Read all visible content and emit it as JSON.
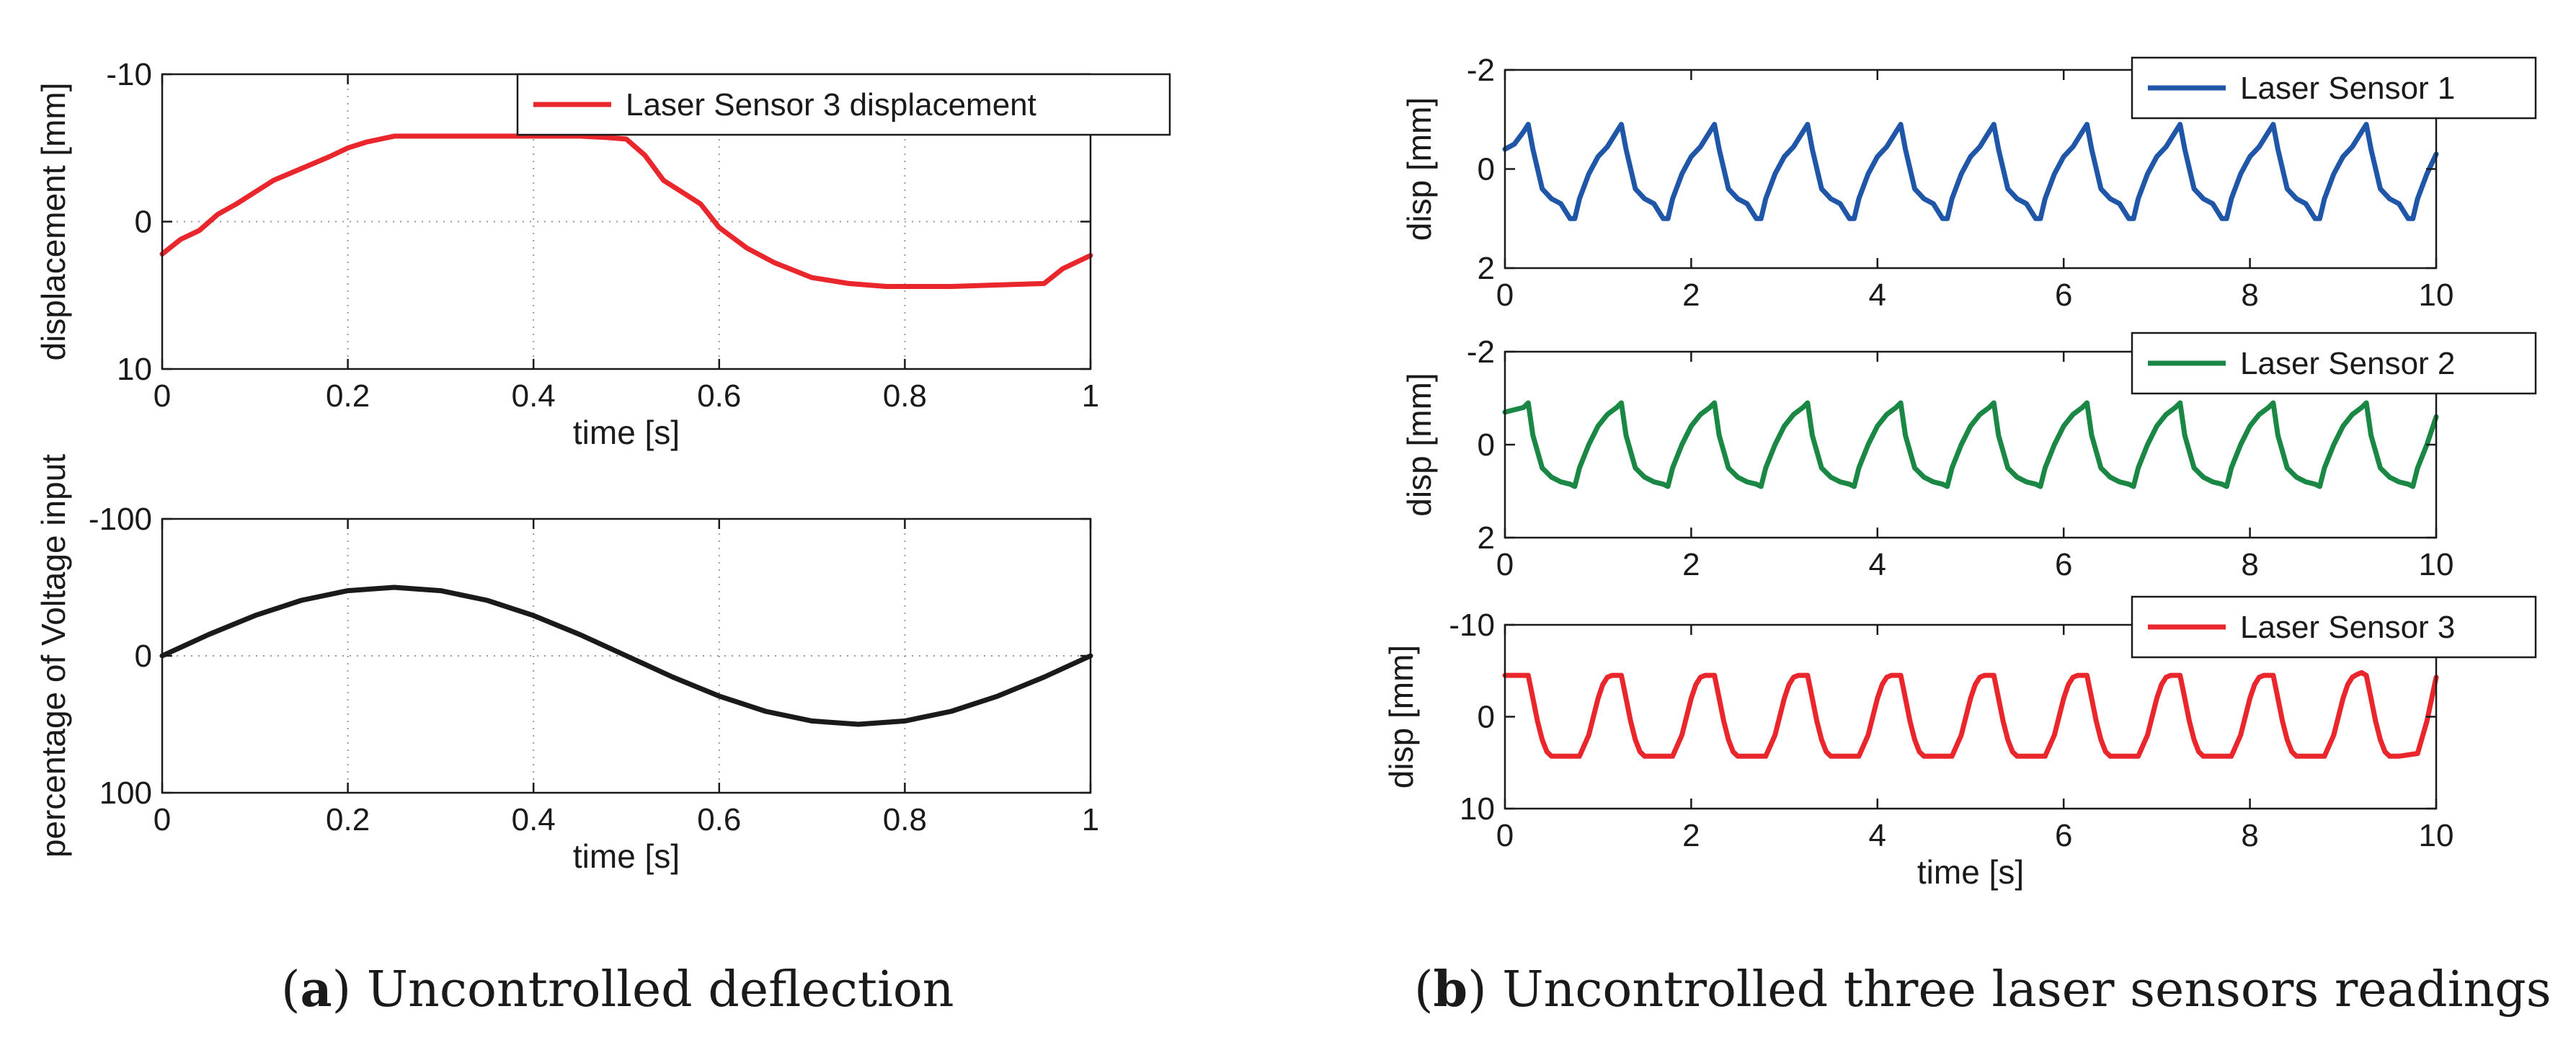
{
  "colors": {
    "red": "#e8262b",
    "blue": "#1f56a8",
    "green": "#1a8744",
    "black": "#1a1a1a"
  },
  "captions": {
    "a_letter": "a",
    "a_text": "Uncontrolled deflection",
    "b_letter": "b",
    "b_text": "Uncontrolled three laser sensors readings"
  },
  "chart_data": [
    {
      "id": "a_top",
      "type": "line",
      "xlabel": "time [s]",
      "ylabel": "displacement [mm]",
      "xlim": [
        0,
        1
      ],
      "ylim": [
        -10,
        10
      ],
      "y_reversed": true,
      "xticks": [
        0,
        0.2,
        0.4,
        0.6,
        0.8,
        1
      ],
      "xtick_labels": [
        "0",
        "0.2",
        "0.4",
        "0.6",
        "0.8",
        "1"
      ],
      "yticks": [
        -10,
        0,
        10
      ],
      "ytick_labels": [
        "-10",
        "0",
        "10"
      ],
      "grid": true,
      "legend_position": "top-right",
      "series": [
        {
          "name": "Laser Sensor 3 displacement",
          "color": "red",
          "x": [
            0,
            0.02,
            0.04,
            0.06,
            0.08,
            0.1,
            0.12,
            0.15,
            0.18,
            0.2,
            0.22,
            0.25,
            0.3,
            0.35,
            0.4,
            0.45,
            0.48,
            0.5,
            0.52,
            0.54,
            0.56,
            0.58,
            0.6,
            0.63,
            0.66,
            0.7,
            0.74,
            0.78,
            0.8,
            0.85,
            0.9,
            0.95,
            0.97,
            1.0
          ],
          "y": [
            2.2,
            1.2,
            0.6,
            -0.5,
            -1.2,
            -2.0,
            -2.8,
            -3.6,
            -4.4,
            -5.0,
            -5.4,
            -5.8,
            -5.8,
            -5.8,
            -5.8,
            -5.8,
            -5.7,
            -5.6,
            -4.5,
            -2.8,
            -2.0,
            -1.2,
            0.4,
            1.8,
            2.8,
            3.8,
            4.2,
            4.4,
            4.4,
            4.4,
            4.3,
            4.2,
            3.2,
            2.3
          ]
        }
      ]
    },
    {
      "id": "a_bottom",
      "type": "line",
      "xlabel": "time [s]",
      "ylabel": "percentage of Voltage input",
      "xlim": [
        0,
        1
      ],
      "ylim": [
        -100,
        100
      ],
      "y_reversed": true,
      "xticks": [
        0,
        0.2,
        0.4,
        0.6,
        0.8,
        1
      ],
      "xtick_labels": [
        "0",
        "0.2",
        "0.4",
        "0.6",
        "0.8",
        "1"
      ],
      "yticks": [
        -100,
        0,
        100
      ],
      "ytick_labels": [
        "-100",
        "0",
        "100"
      ],
      "grid": true,
      "series": [
        {
          "name": "voltage input",
          "color": "black",
          "x": [
            0,
            0.05,
            0.1,
            0.15,
            0.2,
            0.25,
            0.3,
            0.35,
            0.4,
            0.45,
            0.5,
            0.55,
            0.6,
            0.65,
            0.7,
            0.75,
            0.8,
            0.85,
            0.9,
            0.95,
            1.0
          ],
          "y": [
            0,
            -15.5,
            -29.4,
            -40.5,
            -47.6,
            -50,
            -47.6,
            -40.5,
            -29.4,
            -15.5,
            0,
            15.5,
            29.4,
            40.5,
            47.6,
            50,
            47.6,
            40.5,
            29.4,
            15.5,
            0
          ]
        }
      ]
    },
    {
      "id": "b_top",
      "type": "line",
      "xlabel": "",
      "ylabel": "disp [mm]",
      "xlim": [
        0,
        10
      ],
      "ylim": [
        -2,
        2
      ],
      "y_reversed": true,
      "xticks": [
        0,
        2,
        4,
        6,
        8,
        10
      ],
      "xtick_labels": [
        "0",
        "2",
        "4",
        "6",
        "8",
        "10"
      ],
      "yticks": [
        -2,
        0,
        2
      ],
      "ytick_labels": [
        "-2",
        "0",
        "2"
      ],
      "grid": false,
      "legend_position": "top-right",
      "series": [
        {
          "name": "Laser Sensor 1",
          "color": "blue",
          "x": [
            0,
            0.1,
            0.2,
            0.25,
            0.3,
            0.4,
            0.5,
            0.6,
            0.7,
            0.75,
            0.8,
            0.9,
            1.0,
            1.1,
            1.2,
            1.25,
            1.3,
            1.4,
            1.5,
            1.6,
            1.7,
            1.75,
            1.8,
            1.9,
            2.0,
            2.1,
            2.2,
            2.25,
            2.3,
            2.4,
            2.5,
            2.6,
            2.7,
            2.75,
            2.8,
            2.9,
            3.0,
            3.1,
            3.2,
            3.25,
            3.3,
            3.4,
            3.5,
            3.6,
            3.7,
            3.75,
            3.8,
            3.9,
            4.0,
            4.1,
            4.2,
            4.25,
            4.3,
            4.4,
            4.5,
            4.6,
            4.7,
            4.75,
            4.8,
            4.9,
            5.0,
            5.1,
            5.2,
            5.25,
            5.3,
            5.4,
            5.5,
            5.6,
            5.7,
            5.75,
            5.8,
            5.9,
            6.0,
            6.1,
            6.2,
            6.25,
            6.3,
            6.4,
            6.5,
            6.6,
            6.7,
            6.75,
            6.8,
            6.9,
            7.0,
            7.1,
            7.2,
            7.25,
            7.3,
            7.4,
            7.5,
            7.6,
            7.7,
            7.75,
            7.8,
            7.9,
            8.0,
            8.1,
            8.2,
            8.25,
            8.3,
            8.4,
            8.5,
            8.6,
            8.7,
            8.75,
            8.8,
            8.9,
            9.0,
            9.1,
            9.2,
            9.25,
            9.3,
            9.4,
            9.5,
            9.6,
            9.7,
            9.75,
            9.8,
            9.9,
            10.0
          ],
          "y": [
            -0.4,
            -0.5,
            -0.75,
            -0.9,
            -0.4,
            0.4,
            0.6,
            0.7,
            1.0,
            1.0,
            0.6,
            0.1,
            -0.25,
            -0.45,
            -0.75,
            -0.9,
            -0.4,
            0.4,
            0.6,
            0.7,
            1.0,
            1.0,
            0.6,
            0.1,
            -0.25,
            -0.45,
            -0.75,
            -0.9,
            -0.4,
            0.4,
            0.6,
            0.7,
            1.0,
            1.0,
            0.6,
            0.1,
            -0.25,
            -0.45,
            -0.75,
            -0.9,
            -0.4,
            0.4,
            0.6,
            0.7,
            1.0,
            1.0,
            0.6,
            0.1,
            -0.25,
            -0.45,
            -0.75,
            -0.9,
            -0.4,
            0.4,
            0.6,
            0.7,
            1.0,
            1.0,
            0.6,
            0.1,
            -0.25,
            -0.45,
            -0.75,
            -0.9,
            -0.4,
            0.4,
            0.6,
            0.7,
            1.0,
            1.0,
            0.6,
            0.1,
            -0.25,
            -0.45,
            -0.75,
            -0.9,
            -0.4,
            0.4,
            0.6,
            0.7,
            1.0,
            1.0,
            0.6,
            0.1,
            -0.25,
            -0.45,
            -0.75,
            -0.9,
            -0.4,
            0.4,
            0.6,
            0.7,
            1.0,
            1.0,
            0.6,
            0.1,
            -0.25,
            -0.45,
            -0.75,
            -0.9,
            -0.4,
            0.4,
            0.6,
            0.7,
            1.0,
            1.0,
            0.6,
            0.1,
            -0.25,
            -0.45,
            -0.75,
            -0.9,
            -0.4,
            0.4,
            0.6,
            0.7,
            1.0,
            1.0,
            0.6,
            0.1,
            -0.3
          ]
        }
      ]
    },
    {
      "id": "b_mid",
      "type": "line",
      "xlabel": "",
      "ylabel": "disp [mm]",
      "xlim": [
        0,
        10
      ],
      "ylim": [
        -2,
        2
      ],
      "y_reversed": true,
      "xticks": [
        0,
        2,
        4,
        6,
        8,
        10
      ],
      "xtick_labels": [
        "0",
        "2",
        "4",
        "6",
        "8",
        "10"
      ],
      "yticks": [
        -2,
        0,
        2
      ],
      "ytick_labels": [
        "-2",
        "0",
        "2"
      ],
      "grid": false,
      "legend_position": "top-right",
      "series": [
        {
          "name": "Laser Sensor 2",
          "color": "green",
          "x": [
            0,
            0.1,
            0.2,
            0.25,
            0.3,
            0.4,
            0.5,
            0.6,
            0.7,
            0.75,
            0.8,
            0.9,
            1.0,
            1.1,
            1.2,
            1.25,
            1.3,
            1.4,
            1.5,
            1.6,
            1.7,
            1.75,
            1.8,
            1.9,
            2.0,
            2.1,
            2.2,
            2.25,
            2.3,
            2.4,
            2.5,
            2.6,
            2.7,
            2.75,
            2.8,
            2.9,
            3.0,
            3.1,
            3.2,
            3.25,
            3.3,
            3.4,
            3.5,
            3.6,
            3.7,
            3.75,
            3.8,
            3.9,
            4.0,
            4.1,
            4.2,
            4.25,
            4.3,
            4.4,
            4.5,
            4.6,
            4.7,
            4.75,
            4.8,
            4.9,
            5.0,
            5.1,
            5.2,
            5.25,
            5.3,
            5.4,
            5.5,
            5.6,
            5.7,
            5.75,
            5.8,
            5.9,
            6.0,
            6.1,
            6.2,
            6.25,
            6.3,
            6.4,
            6.5,
            6.6,
            6.7,
            6.75,
            6.8,
            6.9,
            7.0,
            7.1,
            7.2,
            7.25,
            7.3,
            7.4,
            7.5,
            7.6,
            7.7,
            7.75,
            7.8,
            7.9,
            8.0,
            8.1,
            8.2,
            8.25,
            8.3,
            8.4,
            8.5,
            8.6,
            8.7,
            8.75,
            8.8,
            8.9,
            9.0,
            9.1,
            9.2,
            9.25,
            9.3,
            9.4,
            9.5,
            9.6,
            9.7,
            9.75,
            9.8,
            9.9,
            10.0
          ],
          "y": [
            -0.7,
            -0.75,
            -0.8,
            -0.9,
            -0.2,
            0.5,
            0.7,
            0.8,
            0.85,
            0.9,
            0.5,
            0.0,
            -0.4,
            -0.65,
            -0.8,
            -0.9,
            -0.2,
            0.5,
            0.7,
            0.8,
            0.85,
            0.9,
            0.5,
            0.0,
            -0.4,
            -0.65,
            -0.8,
            -0.9,
            -0.2,
            0.5,
            0.7,
            0.8,
            0.85,
            0.9,
            0.5,
            0.0,
            -0.4,
            -0.65,
            -0.8,
            -0.9,
            -0.2,
            0.5,
            0.7,
            0.8,
            0.85,
            0.9,
            0.5,
            0.0,
            -0.4,
            -0.65,
            -0.8,
            -0.9,
            -0.2,
            0.5,
            0.7,
            0.8,
            0.85,
            0.9,
            0.5,
            0.0,
            -0.4,
            -0.65,
            -0.8,
            -0.9,
            -0.2,
            0.5,
            0.7,
            0.8,
            0.85,
            0.9,
            0.5,
            0.0,
            -0.4,
            -0.65,
            -0.8,
            -0.9,
            -0.2,
            0.5,
            0.7,
            0.8,
            0.85,
            0.9,
            0.5,
            0.0,
            -0.4,
            -0.65,
            -0.8,
            -0.9,
            -0.2,
            0.5,
            0.7,
            0.8,
            0.85,
            0.9,
            0.5,
            0.0,
            -0.4,
            -0.65,
            -0.8,
            -0.9,
            -0.2,
            0.5,
            0.7,
            0.8,
            0.85,
            0.9,
            0.5,
            0.0,
            -0.4,
            -0.65,
            -0.8,
            -0.9,
            -0.2,
            0.5,
            0.7,
            0.8,
            0.85,
            0.9,
            0.5,
            0.0,
            -0.6
          ]
        }
      ]
    },
    {
      "id": "b_bottom",
      "type": "line",
      "xlabel": "time [s]",
      "ylabel": "disp [mm]",
      "xlim": [
        0,
        10
      ],
      "ylim": [
        -10,
        10
      ],
      "y_reversed": true,
      "xticks": [
        0,
        2,
        4,
        6,
        8,
        10
      ],
      "xtick_labels": [
        "0",
        "2",
        "4",
        "6",
        "8",
        "10"
      ],
      "yticks": [
        -10,
        0,
        10
      ],
      "ytick_labels": [
        "-10",
        "0",
        "10"
      ],
      "grid": false,
      "legend_position": "top-right",
      "series": [
        {
          "name": "Laser Sensor 3",
          "color": "red",
          "x": [
            0,
            0.25,
            0.3,
            0.35,
            0.4,
            0.45,
            0.5,
            0.55,
            0.6,
            0.8,
            0.9,
            1.0,
            1.05,
            1.1,
            1.15,
            1.2,
            1.25,
            1.3,
            1.35,
            1.4,
            1.45,
            1.5,
            1.55,
            1.6,
            1.8,
            1.9,
            2.0,
            2.05,
            2.1,
            2.15,
            2.2,
            2.25,
            2.3,
            2.35,
            2.4,
            2.45,
            2.5,
            2.55,
            2.6,
            2.8,
            2.9,
            3.0,
            3.05,
            3.1,
            3.15,
            3.2,
            3.25,
            3.3,
            3.35,
            3.4,
            3.45,
            3.5,
            3.55,
            3.6,
            3.8,
            3.9,
            4.0,
            4.05,
            4.1,
            4.15,
            4.2,
            4.25,
            4.3,
            4.35,
            4.4,
            4.45,
            4.5,
            4.55,
            4.6,
            4.8,
            4.9,
            5.0,
            5.05,
            5.1,
            5.15,
            5.2,
            5.25,
            5.3,
            5.35,
            5.4,
            5.45,
            5.5,
            5.55,
            5.6,
            5.8,
            5.9,
            6.0,
            6.05,
            6.1,
            6.15,
            6.2,
            6.25,
            6.3,
            6.35,
            6.4,
            6.45,
            6.5,
            6.55,
            6.6,
            6.8,
            6.9,
            7.0,
            7.05,
            7.1,
            7.15,
            7.2,
            7.25,
            7.3,
            7.35,
            7.4,
            7.45,
            7.5,
            7.55,
            7.6,
            7.8,
            7.9,
            8.0,
            8.05,
            8.1,
            8.15,
            8.2,
            8.25,
            8.3,
            8.35,
            8.4,
            8.45,
            8.5,
            8.55,
            8.6,
            8.8,
            8.9,
            9.0,
            9.05,
            9.1,
            9.15,
            9.2,
            9.25,
            9.3,
            9.35,
            9.4,
            9.45,
            9.5,
            9.55,
            9.6,
            9.8,
            9.9,
            10.0
          ],
          "y": [
            -4.5,
            -4.5,
            -2.0,
            0.5,
            2.5,
            3.8,
            4.3,
            4.3,
            4.3,
            4.3,
            2.0,
            -2.0,
            -3.5,
            -4.3,
            -4.5,
            -4.5,
            -4.5,
            -2.0,
            0.5,
            2.5,
            3.8,
            4.3,
            4.3,
            4.3,
            4.3,
            2.0,
            -2.0,
            -3.5,
            -4.3,
            -4.5,
            -4.5,
            -4.5,
            -2.0,
            0.5,
            2.5,
            3.8,
            4.3,
            4.3,
            4.3,
            4.3,
            2.0,
            -2.0,
            -3.5,
            -4.3,
            -4.5,
            -4.5,
            -4.5,
            -2.0,
            0.5,
            2.5,
            3.8,
            4.3,
            4.3,
            4.3,
            4.3,
            2.0,
            -2.0,
            -3.5,
            -4.3,
            -4.5,
            -4.5,
            -4.5,
            -2.0,
            0.5,
            2.5,
            3.8,
            4.3,
            4.3,
            4.3,
            4.3,
            2.0,
            -2.0,
            -3.5,
            -4.3,
            -4.5,
            -4.5,
            -4.5,
            -2.0,
            0.5,
            2.5,
            3.8,
            4.3,
            4.3,
            4.3,
            4.3,
            2.0,
            -2.0,
            -3.5,
            -4.3,
            -4.5,
            -4.5,
            -4.5,
            -2.0,
            0.5,
            2.5,
            3.8,
            4.3,
            4.3,
            4.3,
            4.3,
            2.0,
            -2.0,
            -3.5,
            -4.3,
            -4.5,
            -4.5,
            -4.5,
            -2.0,
            0.5,
            2.5,
            3.8,
            4.3,
            4.3,
            4.3,
            4.3,
            2.0,
            -2.0,
            -3.5,
            -4.3,
            -4.5,
            -4.5,
            -4.5,
            -2.0,
            0.5,
            2.5,
            3.8,
            4.3,
            4.3,
            4.3,
            4.3,
            2.0,
            -2.0,
            -3.5,
            -4.3,
            -4.6,
            -4.8,
            -4.5,
            -2.0,
            0.5,
            2.5,
            3.8,
            4.3,
            4.3,
            4.3,
            4.0,
            0.5,
            -4.3
          ]
        }
      ]
    }
  ]
}
